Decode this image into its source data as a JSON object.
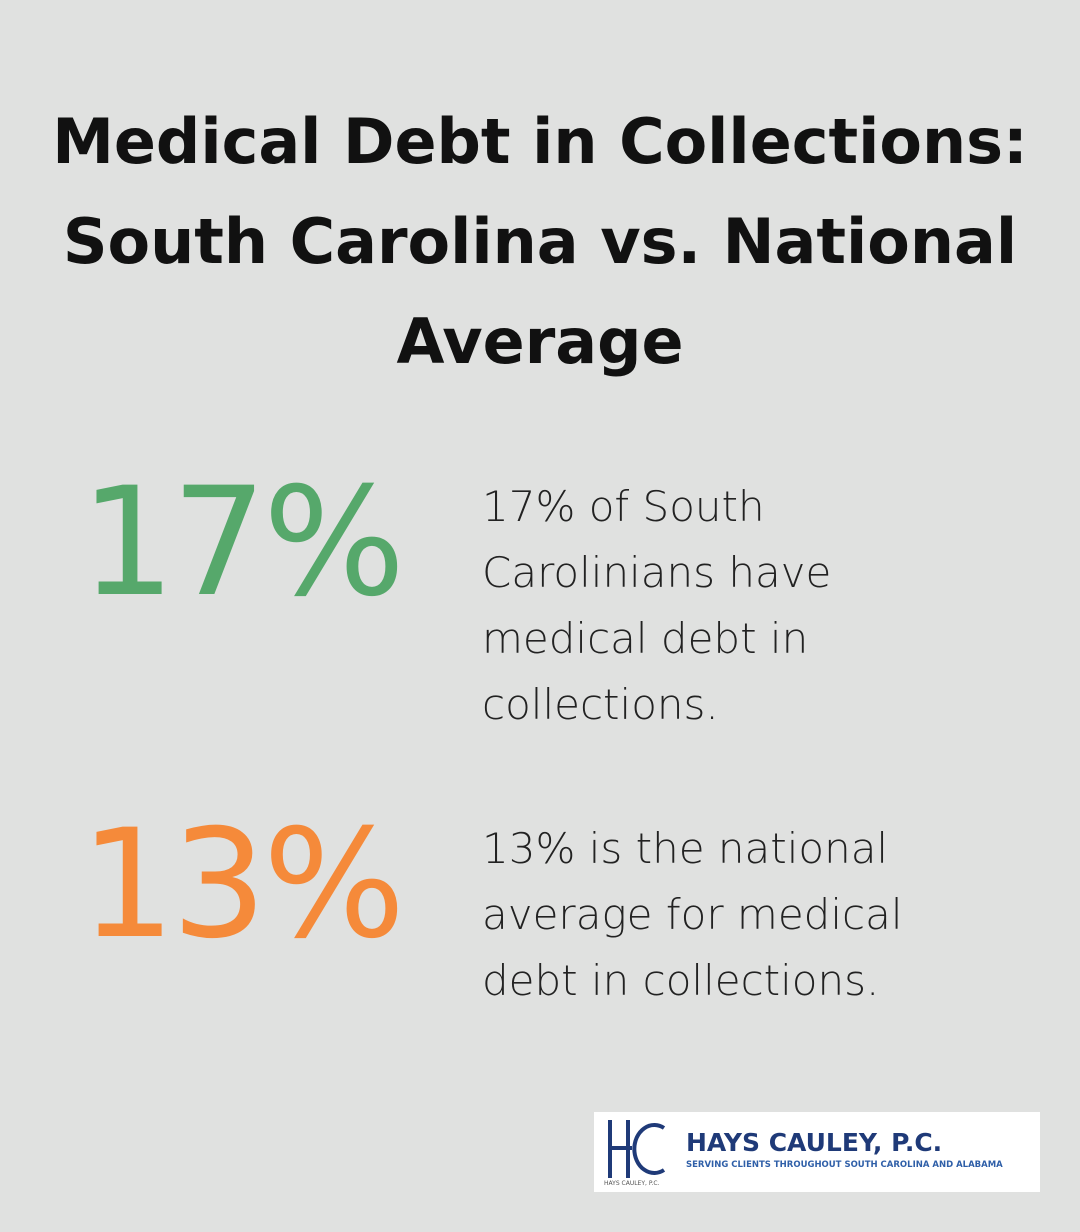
{
  "header": {
    "title": "Medical Debt in Collections: South Carolina vs. National Average"
  },
  "stats": [
    {
      "value": "17%",
      "description": "17% of South Carolinians have medical debt in collections."
    },
    {
      "value": "13%",
      "description": "13% is the national average for medical debt in collections."
    }
  ],
  "logo": {
    "name": "HAYS CAULEY, P.C.",
    "tagline": "SERVING CLIENTS THROUGHOUT SOUTH CAROLINA AND ALABAMA",
    "small_name": "HAYS CAULEY, P.C."
  }
}
